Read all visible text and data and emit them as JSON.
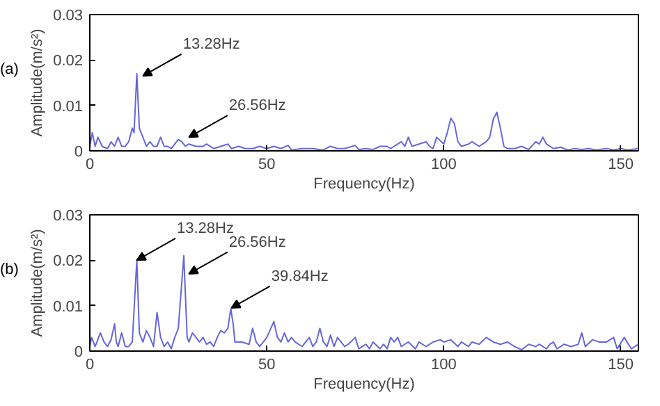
{
  "chart_data": [
    {
      "type": "line",
      "title": "(a)",
      "xlabel": "Frequency(Hz)",
      "ylabel": "Amplitude(m/s²)",
      "xlim": [
        0,
        155
      ],
      "ylim": [
        0,
        0.03
      ],
      "xticks": [
        0,
        50,
        100,
        150
      ],
      "yticks": [
        0,
        0.01,
        0.02,
        0.03
      ],
      "grid": false,
      "annotations": [
        {
          "text": "13.28Hz",
          "x": 15,
          "y": 0.0165
        },
        {
          "text": "26.56Hz",
          "x": 28,
          "y": 0.003
        }
      ],
      "series": [
        {
          "color": "#6666dd",
          "x": [
            0,
            0.7,
            1.5,
            2.3,
            3.5,
            5,
            6,
            7,
            8,
            9,
            10,
            11,
            12,
            12.5,
            13.28,
            14,
            15,
            16,
            17,
            18,
            19,
            20,
            21,
            22,
            23,
            25,
            26,
            27,
            28,
            30,
            32,
            33,
            35,
            37,
            39,
            40,
            42,
            44,
            46,
            48,
            50,
            52,
            54,
            56,
            57,
            60,
            63,
            66,
            68,
            70,
            72,
            75,
            76,
            78,
            80,
            82,
            84,
            85,
            87,
            88,
            89,
            90,
            91,
            93,
            95,
            96,
            97,
            98,
            100,
            101,
            102,
            103,
            104,
            105,
            107,
            108,
            110,
            111,
            112,
            113,
            114,
            115,
            116,
            117,
            118,
            120,
            122,
            124,
            126,
            127,
            128,
            129,
            131,
            133,
            135,
            137,
            139,
            141,
            143,
            146,
            148,
            150,
            152,
            155
          ],
          "values": [
            0.001,
            0.004,
            0.001,
            0.003,
            0.001,
            0.0005,
            0.002,
            0.001,
            0.003,
            0.001,
            0.001,
            0.002,
            0.005,
            0.004,
            0.017,
            0.005,
            0.003,
            0.001,
            0.002,
            0.001,
            0.001,
            0.003,
            0.001,
            0.001,
            0.0005,
            0.0025,
            0.002,
            0.001,
            0.0015,
            0.001,
            0.001,
            0.0015,
            0.0005,
            0.001,
            0.0015,
            0.0005,
            0.001,
            0.0005,
            0.0005,
            0.001,
            0.0005,
            0.001,
            0.0005,
            0.0012,
            0.0002,
            0.0005,
            0.0005,
            0.0002,
            0.001,
            0.0005,
            0.0005,
            0.0012,
            0.0003,
            0.0005,
            0.0003,
            0.001,
            0.001,
            0.0005,
            0.0015,
            0.002,
            0.001,
            0.003,
            0.001,
            0.0015,
            0.002,
            0.001,
            0.0005,
            0.003,
            0.0015,
            0.004,
            0.0072,
            0.006,
            0.002,
            0.001,
            0.0015,
            0.002,
            0.001,
            0.0015,
            0.002,
            0.003,
            0.007,
            0.0085,
            0.005,
            0.001,
            0.0005,
            0.0005,
            0.001,
            0.0003,
            0.002,
            0.0015,
            0.003,
            0.0015,
            0.0005,
            0.0008,
            0.0002,
            0.0005,
            0.0003,
            0.0005,
            0.0002,
            0.0005,
            0.0002,
            0.0005,
            0.0002,
            0.0005
          ]
        }
      ]
    },
    {
      "type": "line",
      "title": "(b)",
      "xlabel": "Frequency(Hz)",
      "ylabel": "Amplitude(m/s²)",
      "xlim": [
        0,
        155
      ],
      "ylim": [
        0,
        0.03
      ],
      "xticks": [
        0,
        50,
        100,
        150
      ],
      "yticks": [
        0,
        0.01,
        0.02,
        0.03
      ],
      "grid": false,
      "annotations": [
        {
          "text": "13.28Hz",
          "x": 13.28,
          "y": 0.02
        },
        {
          "text": "26.56Hz",
          "x": 28,
          "y": 0.017
        },
        {
          "text": "39.84Hz",
          "x": 40,
          "y": 0.0095
        }
      ],
      "series": [
        {
          "color": "#6666dd",
          "x": [
            0,
            0.5,
            1.5,
            3,
            4,
            5,
            6,
            7,
            7.5,
            8,
            9,
            10,
            11,
            12,
            13.28,
            14,
            15,
            16,
            17,
            18,
            19,
            20,
            21,
            22,
            23,
            24,
            25,
            26.56,
            27.5,
            28,
            29,
            30,
            31,
            32,
            33,
            34,
            35,
            36,
            37,
            38,
            39,
            39.84,
            40.5,
            41,
            43,
            45,
            46,
            47,
            48,
            50,
            52,
            53,
            54,
            55,
            56,
            57,
            58,
            60,
            62,
            63,
            64,
            65,
            66,
            67,
            68,
            69,
            70,
            72,
            73,
            75,
            76,
            78,
            79,
            80,
            82,
            83,
            84,
            85,
            86,
            87,
            88,
            90,
            92,
            93,
            95,
            97,
            99,
            100,
            102,
            104,
            105,
            107,
            108,
            110,
            112,
            114,
            116,
            118,
            120,
            122,
            124,
            126,
            127,
            129,
            130,
            131,
            132,
            134,
            136,
            138,
            139,
            140,
            142,
            144,
            146,
            148,
            149,
            151,
            153,
            155
          ],
          "values": [
            0.001,
            0.003,
            0.001,
            0.004,
            0.002,
            0.001,
            0.0025,
            0.006,
            0.002,
            0.001,
            0.004,
            0.001,
            0.001,
            0.002,
            0.02,
            0.004,
            0.002,
            0.0045,
            0.003,
            0.001,
            0.0085,
            0.003,
            0.001,
            0.002,
            0.0005,
            0.003,
            0.005,
            0.021,
            0.003,
            0.002,
            0.004,
            0.003,
            0.002,
            0.003,
            0.0015,
            0.002,
            0.001,
            0.003,
            0.0045,
            0.004,
            0.005,
            0.0093,
            0.006,
            0.002,
            0.002,
            0.0015,
            0.005,
            0.002,
            0.001,
            0.003,
            0.0065,
            0.003,
            0.002,
            0.004,
            0.002,
            0.003,
            0.002,
            0.001,
            0.003,
            0.001,
            0.002,
            0.005,
            0.002,
            0.001,
            0.0035,
            0.001,
            0.003,
            0.001,
            0.0015,
            0.003,
            0.0005,
            0.0015,
            0.0005,
            0.002,
            0.0005,
            0.0015,
            0.0005,
            0.003,
            0.002,
            0.003,
            0.001,
            0.002,
            0.0005,
            0.002,
            0.001,
            0.002,
            0.0025,
            0.002,
            0.0025,
            0.001,
            0.002,
            0.001,
            0.002,
            0.0015,
            0.003,
            0.002,
            0.0015,
            0.002,
            0.001,
            0.0003,
            0.0015,
            0.001,
            0.0015,
            0.0005,
            0.0015,
            0.002,
            0.0005,
            0.0015,
            0.001,
            0.0015,
            0.004,
            0.001,
            0.0025,
            0.002,
            0.002,
            0.003,
            0.0005,
            0.003,
            0.0005,
            0.0015
          ]
        }
      ]
    }
  ]
}
